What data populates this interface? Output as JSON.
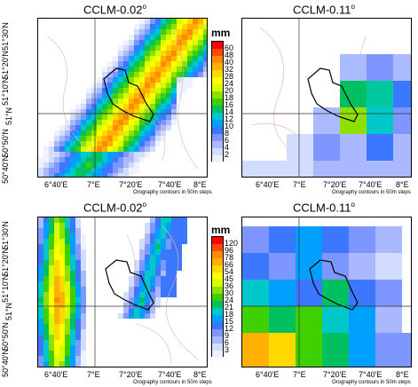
{
  "panels": [
    {
      "title": "CCLM-0.02",
      "degree": "o"
    },
    {
      "title": "CCLM-0.11",
      "degree": "o"
    },
    {
      "title": "CCLM-0.02",
      "degree": "o"
    },
    {
      "title": "CCLM-0.11",
      "degree": "o"
    }
  ],
  "lat_labels": [
    "51°30'N",
    "51°20'N",
    "51°10'N",
    "51°N",
    "50°50'N",
    "50°40'N"
  ],
  "lon_labels": [
    "6°40'E",
    "7°E",
    "7°20'E",
    "7°40'E",
    "8°E"
  ],
  "orography_note": "Orography contours in 50m steps",
  "unit": "mm",
  "legend_top": {
    "values": [
      "60",
      "48",
      "40",
      "32",
      "28",
      "24",
      "20",
      "18",
      "16",
      "14",
      "12",
      "10",
      "8",
      "6",
      "4",
      "2"
    ],
    "colors": [
      "#ff0000",
      "#ff4a00",
      "#ff8c00",
      "#ffb000",
      "#ffd800",
      "#ffff00",
      "#d4ff00",
      "#8ee000",
      "#3ed000",
      "#00c060",
      "#00c8c8",
      "#00a0ff",
      "#3c78ff",
      "#7e96ff",
      "#aab8ff",
      "#d2dcff",
      "#eef2ff"
    ]
  },
  "legend_bottom": {
    "values": [
      "120",
      "96",
      "78",
      "66",
      "54",
      "45",
      "36",
      "30",
      "24",
      "21",
      "18",
      "15",
      "12",
      "9",
      "6",
      "3"
    ],
    "colors": [
      "#ff0000",
      "#ff4a00",
      "#ff8c00",
      "#ffb000",
      "#ffd800",
      "#ffff00",
      "#d4ff00",
      "#8ee000",
      "#3ed000",
      "#00c060",
      "#00c8c8",
      "#00a0ff",
      "#3c78ff",
      "#7e96ff",
      "#aab8ff",
      "#d2dcff",
      "#eef2ff"
    ]
  }
}
